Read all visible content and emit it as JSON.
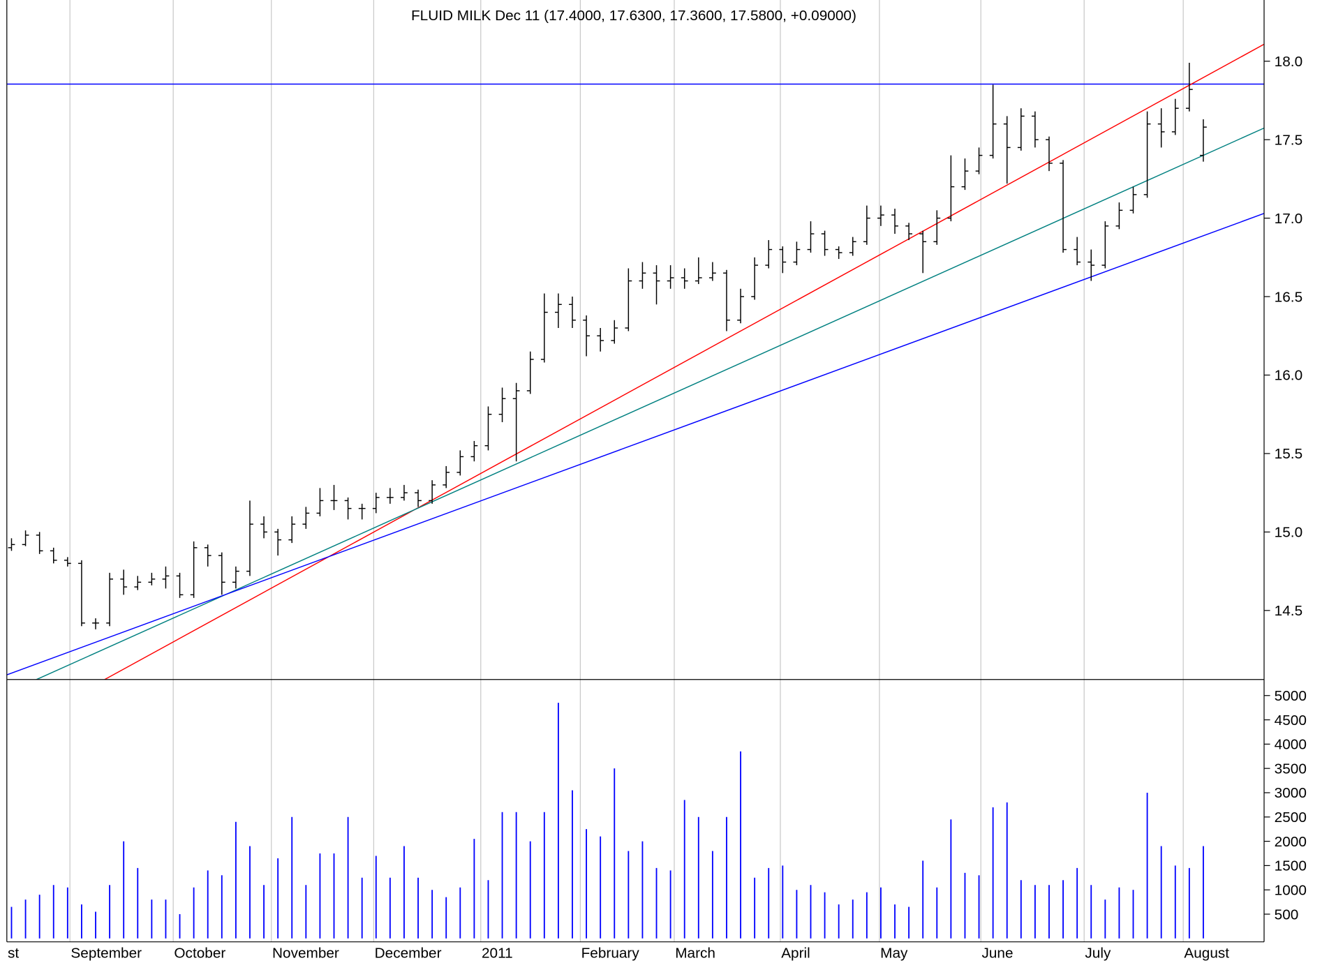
{
  "chart_data": {
    "type": "ohlc",
    "title": "FLUID MILK Dec 11 (17.4000, 17.6300, 17.3600, 17.5800, +0.09000)",
    "xlim": [
      -1,
      268
    ],
    "xticks": [
      {
        "value": -1,
        "label": "st"
      },
      {
        "value": 12.5,
        "label": "September"
      },
      {
        "value": 34.6,
        "label": "October"
      },
      {
        "value": 55.6,
        "label": "November"
      },
      {
        "value": 77.5,
        "label": "December"
      },
      {
        "value": 100.4,
        "label": "2011"
      },
      {
        "value": 121.7,
        "label": "February"
      },
      {
        "value": 141.8,
        "label": "March"
      },
      {
        "value": 164.5,
        "label": "April"
      },
      {
        "value": 185.7,
        "label": "May"
      },
      {
        "value": 207.4,
        "label": "June"
      },
      {
        "value": 229.5,
        "label": "July"
      },
      {
        "value": 250.7,
        "label": "August"
      }
    ],
    "grid": true,
    "ylim": [
      14.06,
      18.39
    ],
    "yticks": [
      14.5,
      {
        "value": 15,
        "label": "15.0"
      },
      15.5,
      {
        "value": 16,
        "label": "16.0"
      },
      16.5,
      {
        "value": 17,
        "label": "17.0"
      },
      17.5,
      {
        "value": 18,
        "label": "18.0"
      }
    ],
    "y2lim": [
      -70,
      5330
    ],
    "y2ticks": [
      500,
      1000,
      1500,
      2000,
      2500,
      3000,
      3500,
      4000,
      4500,
      5000
    ],
    "x": [
      0,
      3,
      6,
      9,
      12,
      15,
      18,
      21,
      24,
      27,
      30,
      33,
      36,
      39,
      42,
      45,
      48,
      51,
      54,
      57,
      60,
      63,
      66,
      69,
      72,
      75,
      78,
      81,
      84,
      87,
      90,
      93,
      96,
      99,
      102,
      105,
      108,
      111,
      114,
      117,
      120,
      123,
      126,
      129,
      132,
      135,
      138,
      141,
      144,
      147,
      150,
      153,
      156,
      159,
      162,
      165,
      168,
      171,
      174,
      177,
      180,
      183,
      186,
      189,
      192,
      195,
      198,
      201,
      204,
      207,
      210,
      213,
      216,
      219,
      222,
      225,
      228,
      231,
      234,
      237,
      240,
      243,
      246,
      249,
      252,
      255
    ],
    "series": [
      {
        "color": "#000000",
        "ohlc": [
          [
            14.9,
            14.96,
            14.88,
            14.92
          ],
          [
            14.92,
            15.01,
            14.91,
            14.98
          ],
          [
            14.98,
            15.0,
            14.86,
            14.88
          ],
          [
            14.88,
            14.9,
            14.8,
            14.82
          ],
          [
            14.82,
            14.84,
            14.78,
            14.8
          ],
          [
            14.8,
            14.82,
            14.4,
            14.42
          ],
          [
            14.42,
            14.45,
            14.38,
            14.42
          ],
          [
            14.42,
            14.74,
            14.4,
            14.7
          ],
          [
            14.7,
            14.76,
            14.6,
            14.65
          ],
          [
            14.65,
            14.72,
            14.63,
            14.68
          ],
          [
            14.68,
            14.74,
            14.66,
            14.7
          ],
          [
            14.7,
            14.78,
            14.64,
            14.72
          ],
          [
            14.72,
            14.74,
            14.58,
            14.6
          ],
          [
            14.6,
            14.94,
            14.58,
            14.9
          ],
          [
            14.9,
            14.92,
            14.78,
            14.85
          ],
          [
            14.85,
            14.87,
            14.6,
            14.68
          ],
          [
            14.68,
            14.78,
            14.64,
            14.75
          ],
          [
            14.75,
            15.2,
            14.72,
            15.05
          ],
          [
            15.05,
            15.1,
            14.96,
            15.0
          ],
          [
            15.0,
            15.02,
            14.85,
            14.95
          ],
          [
            14.95,
            15.1,
            14.93,
            15.05
          ],
          [
            15.05,
            15.16,
            15.02,
            15.12
          ],
          [
            15.12,
            15.28,
            15.1,
            15.2
          ],
          [
            15.2,
            15.3,
            15.14,
            15.2
          ],
          [
            15.2,
            15.22,
            15.08,
            15.15
          ],
          [
            15.15,
            15.18,
            15.08,
            15.15
          ],
          [
            15.15,
            15.25,
            15.12,
            15.22
          ],
          [
            15.22,
            15.28,
            15.18,
            15.22
          ],
          [
            15.22,
            15.3,
            15.2,
            15.25
          ],
          [
            15.25,
            15.27,
            15.16,
            15.2
          ],
          [
            15.2,
            15.33,
            15.18,
            15.3
          ],
          [
            15.3,
            15.42,
            15.28,
            15.38
          ],
          [
            15.38,
            15.52,
            15.36,
            15.48
          ],
          [
            15.48,
            15.58,
            15.45,
            15.55
          ],
          [
            15.55,
            15.8,
            15.52,
            15.75
          ],
          [
            15.75,
            15.92,
            15.7,
            15.85
          ],
          [
            15.85,
            15.95,
            15.45,
            15.9
          ],
          [
            15.9,
            16.15,
            15.88,
            16.1
          ],
          [
            16.1,
            16.52,
            16.08,
            16.4
          ],
          [
            16.4,
            16.52,
            16.3,
            16.45
          ],
          [
            16.45,
            16.5,
            16.3,
            16.35
          ],
          [
            16.35,
            16.38,
            16.12,
            16.25
          ],
          [
            16.25,
            16.3,
            16.15,
            16.22
          ],
          [
            16.22,
            16.35,
            16.2,
            16.3
          ],
          [
            16.3,
            16.68,
            16.28,
            16.6
          ],
          [
            16.6,
            16.72,
            16.55,
            16.65
          ],
          [
            16.65,
            16.7,
            16.45,
            16.6
          ],
          [
            16.6,
            16.7,
            16.55,
            16.62
          ],
          [
            16.62,
            16.68,
            16.55,
            16.6
          ],
          [
            16.6,
            16.75,
            16.58,
            16.62
          ],
          [
            16.62,
            16.72,
            16.6,
            16.65
          ],
          [
            16.65,
            16.67,
            16.28,
            16.35
          ],
          [
            16.35,
            16.55,
            16.33,
            16.5
          ],
          [
            16.5,
            16.75,
            16.48,
            16.7
          ],
          [
            16.7,
            16.86,
            16.68,
            16.8
          ],
          [
            16.8,
            16.82,
            16.65,
            16.72
          ],
          [
            16.72,
            16.85,
            16.7,
            16.8
          ],
          [
            16.8,
            16.98,
            16.78,
            16.9
          ],
          [
            16.9,
            16.92,
            16.76,
            16.8
          ],
          [
            16.8,
            16.82,
            16.74,
            16.78
          ],
          [
            16.78,
            16.88,
            16.76,
            16.85
          ],
          [
            16.85,
            17.08,
            16.83,
            17.0
          ],
          [
            17.0,
            17.08,
            16.95,
            17.02
          ],
          [
            17.02,
            17.06,
            16.9,
            16.95
          ],
          [
            16.95,
            16.97,
            16.86,
            16.9
          ],
          [
            16.9,
            16.92,
            16.65,
            16.85
          ],
          [
            16.85,
            17.05,
            16.83,
            17.0
          ],
          [
            17.0,
            17.4,
            16.98,
            17.2
          ],
          [
            17.2,
            17.38,
            17.18,
            17.3
          ],
          [
            17.3,
            17.45,
            17.28,
            17.4
          ],
          [
            17.4,
            17.85,
            17.38,
            17.6
          ],
          [
            17.6,
            17.65,
            17.22,
            17.45
          ],
          [
            17.45,
            17.7,
            17.43,
            17.65
          ],
          [
            17.65,
            17.68,
            17.45,
            17.5
          ],
          [
            17.5,
            17.52,
            17.3,
            17.35
          ],
          [
            17.35,
            17.37,
            16.78,
            16.8
          ],
          [
            16.8,
            16.88,
            16.7,
            16.72
          ],
          [
            16.72,
            16.8,
            16.6,
            16.7
          ],
          [
            16.7,
            16.98,
            16.68,
            16.95
          ],
          [
            16.95,
            17.1,
            16.93,
            17.05
          ],
          [
            17.05,
            17.2,
            17.03,
            17.15
          ],
          [
            17.15,
            17.68,
            17.13,
            17.6
          ],
          [
            17.6,
            17.7,
            17.45,
            17.55
          ],
          [
            17.55,
            17.76,
            17.53,
            17.7
          ],
          [
            17.7,
            17.99,
            17.68,
            17.82
          ],
          [
            17.4,
            17.63,
            17.36,
            17.58
          ]
        ]
      },
      {
        "color": "#0000ff",
        "axis": "y2",
        "values": [
          650,
          800,
          900,
          1100,
          1050,
          700,
          550,
          1100,
          2000,
          1450,
          800,
          800,
          500,
          1050,
          1400,
          1300,
          2400,
          1900,
          1100,
          1650,
          2500,
          1100,
          1750,
          1750,
          2500,
          1250,
          1700,
          1250,
          1900,
          1250,
          1000,
          850,
          1050,
          2050,
          1200,
          2600,
          2600,
          2000,
          2600,
          4850,
          3050,
          2250,
          2100,
          3500,
          1800,
          2000,
          1450,
          1400,
          2850,
          2500,
          1800,
          2500,
          3850,
          1250,
          1450,
          1500,
          1000,
          1100,
          950,
          700,
          800,
          950,
          1050,
          700,
          650,
          1600,
          1050,
          2450,
          1350,
          1300,
          2700,
          2800,
          1200,
          1100,
          1100,
          1200,
          1450,
          1100,
          800,
          1050,
          1000,
          3000,
          1900,
          1500,
          1450,
          1900
        ]
      }
    ],
    "lines": [
      {
        "color": "#0000ff",
        "x": [
          -1,
          268
        ],
        "y": [
          17.854,
          17.854
        ]
      },
      {
        "color": "#ff0000",
        "x": [
          19.8,
          268
        ],
        "y": [
          14.058,
          18.108
        ]
      },
      {
        "color": "#008080",
        "x": [
          5.2,
          268
        ],
        "y": [
          14.058,
          17.574
        ]
      },
      {
        "color": "#0000ff",
        "x": [
          -1,
          268
        ],
        "y": [
          14.09,
          17.03
        ]
      }
    ]
  }
}
